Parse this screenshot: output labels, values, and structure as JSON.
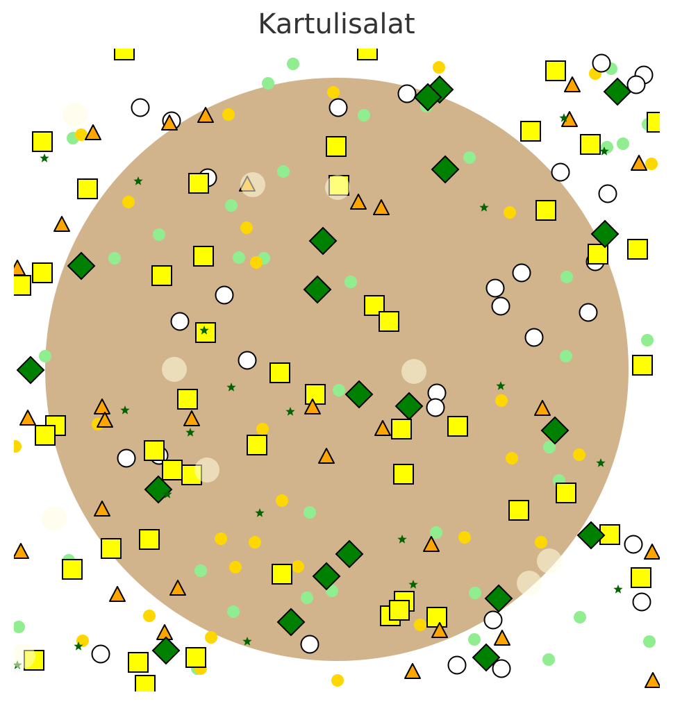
{
  "title": "Kartulisalat",
  "colors": {
    "bowl": "#D2B48C",
    "potato": "#FFFF00",
    "egg": "#FFFFFF",
    "carrot": "#FFA500",
    "pickle": "#008000",
    "corn": "#FFD700",
    "pea": "#90EE90",
    "dill": "#006400",
    "mayo": "#FFFDE0",
    "outline": "#000000"
  },
  "bowl": {
    "shape": "circle",
    "fill": "bowl"
  },
  "ingredients": {
    "potato": {
      "marker": "square-icon",
      "count": 48
    },
    "egg": {
      "marker": "circle-icon",
      "count": 34
    },
    "carrot": {
      "marker": "triangle-icon",
      "count": 37
    },
    "pickle": {
      "marker": "diamond-icon",
      "count": 24
    },
    "corn": {
      "marker": "dot-icon",
      "count": 32
    },
    "pea": {
      "marker": "dot-icon",
      "count": 46
    },
    "dill": {
      "marker": "star-icon",
      "count": 22
    },
    "mayo": {
      "marker": "blob-icon",
      "count": 12
    }
  }
}
